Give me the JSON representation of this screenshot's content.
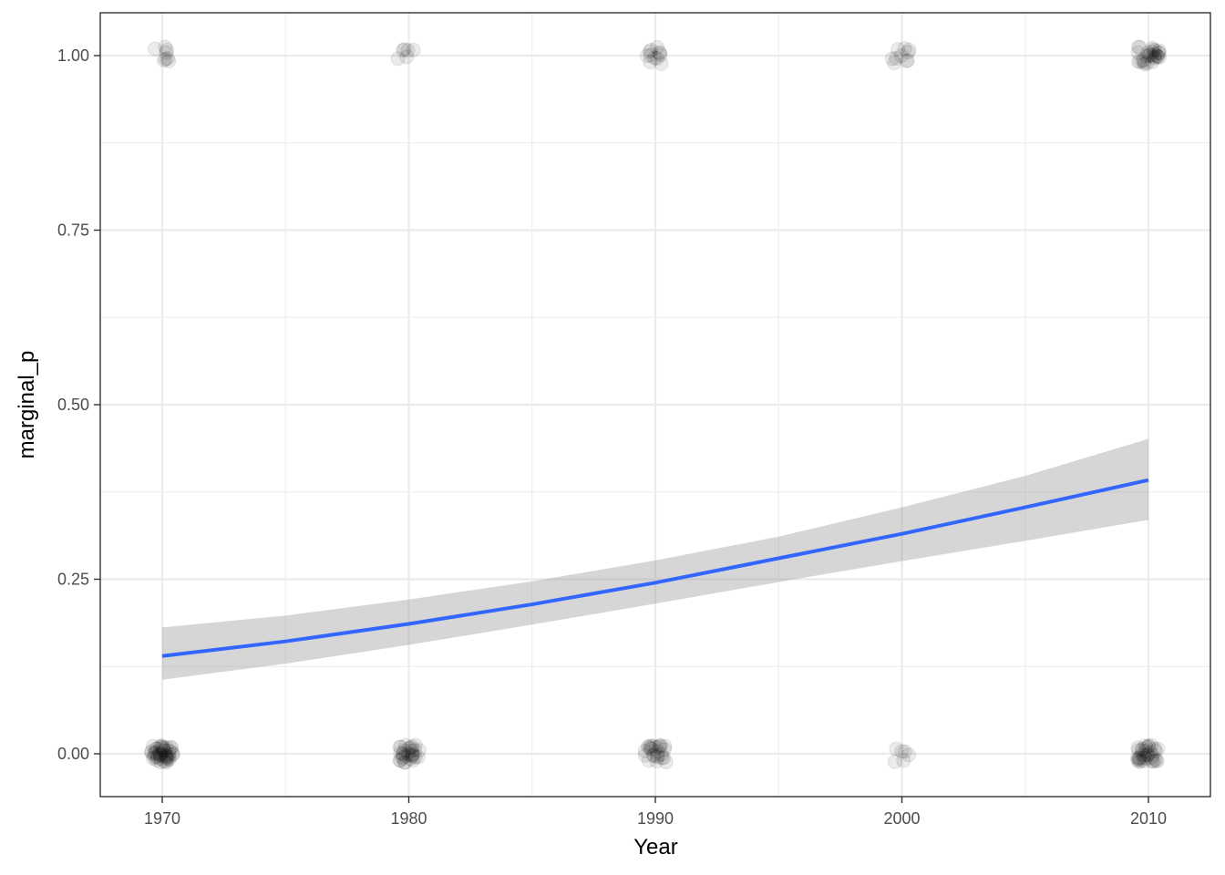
{
  "chart_data": {
    "type": "scatter",
    "title": "",
    "xlabel": "Year",
    "ylabel": "marginal_p",
    "xlim": [
      1967.5,
      2012
    ],
    "ylim": [
      -0.05,
      1.05
    ],
    "x_ticks": [
      1970,
      1980,
      1990,
      2000,
      2010
    ],
    "y_ticks": [
      0,
      0.25,
      0.5,
      0.75,
      1
    ],
    "x_tick_labels": [
      "1970",
      "1980",
      "1990",
      "2000",
      "2010"
    ],
    "y_tick_labels": [
      "0.00",
      "0.25",
      "0.50",
      "0.75",
      "1.00"
    ],
    "grid": true,
    "legend": "none",
    "points": {
      "description_color": "#000000",
      "opacity": 0.08,
      "groups": [
        {
          "x": 1970,
          "y": 1,
          "count": 8
        },
        {
          "x": 1970,
          "y": 0,
          "count": 45
        },
        {
          "x": 1980,
          "y": 1,
          "count": 6
        },
        {
          "x": 1980,
          "y": 0,
          "count": 30
        },
        {
          "x": 1990,
          "y": 1,
          "count": 12
        },
        {
          "x": 1990,
          "y": 0,
          "count": 25
        },
        {
          "x": 2000,
          "y": 1,
          "count": 10
        },
        {
          "x": 2000,
          "y": 0,
          "count": 6
        },
        {
          "x": 2010,
          "y": 1,
          "count": 30
        },
        {
          "x": 2010,
          "y": 0,
          "count": 35
        }
      ]
    },
    "fit": {
      "color": "#3366ff",
      "band_color": "#999999",
      "x": [
        1970,
        1975,
        1980,
        1985,
        1990,
        1995,
        2000,
        2005,
        2010
      ],
      "y": [
        0.14,
        0.161,
        0.186,
        0.214,
        0.245,
        0.28,
        0.315,
        0.353,
        0.392
      ],
      "ymin": [
        0.106,
        0.129,
        0.156,
        0.185,
        0.215,
        0.246,
        0.276,
        0.305,
        0.335
      ],
      "ymax": [
        0.181,
        0.198,
        0.221,
        0.247,
        0.277,
        0.311,
        0.353,
        0.398,
        0.451
      ]
    }
  }
}
